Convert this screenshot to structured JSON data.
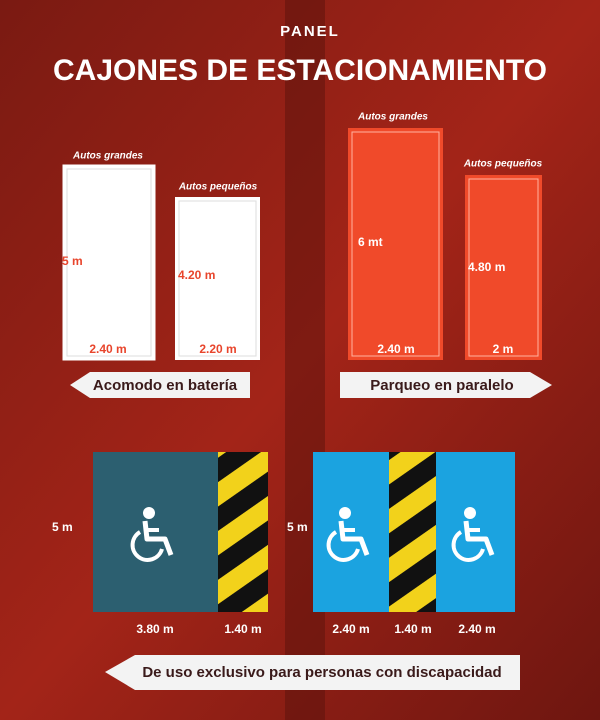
{
  "header": {
    "logo": "PANEL",
    "title": "CAJONES DE ESTACIONAMIENTO"
  },
  "bateria": {
    "large": {
      "label": "Autos grandes",
      "length": "5 m",
      "width": "2.40 m"
    },
    "small": {
      "label": "Autos pequeños",
      "length": "4.20 m",
      "width": "2.20 m"
    },
    "banner": "Acomodo en batería"
  },
  "paralelo": {
    "large": {
      "label": "Autos grandes",
      "length": "6 mt",
      "width": "2.40 m"
    },
    "small": {
      "label": "Autos pequeños",
      "length": "4.80 m",
      "width": "2 m"
    },
    "banner": "Parqueo en paralelo"
  },
  "discapacidad": {
    "left": {
      "length": "5 m",
      "widths": [
        "3.80 m",
        "1.40 m"
      ]
    },
    "right": {
      "length": "5 m",
      "widths": [
        "2.40 m",
        "1.40 m",
        "2.40 m"
      ]
    },
    "banner": "De uso exclusivo para personas con discapacidad"
  }
}
